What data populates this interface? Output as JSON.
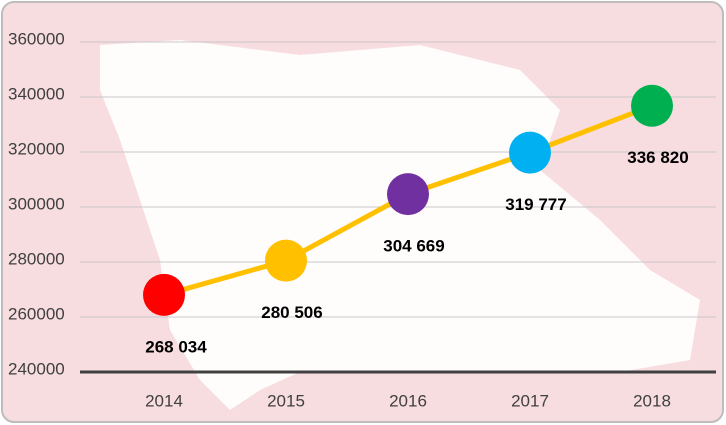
{
  "chart_data": {
    "type": "line",
    "categories": [
      "2014",
      "2015",
      "2016",
      "2017",
      "2018"
    ],
    "values": [
      268034,
      280506,
      304669,
      319777,
      336820
    ],
    "value_labels": [
      "268 034",
      "280 506",
      "304 669",
      "319 777",
      "336 820"
    ],
    "colors": [
      "#ff0000",
      "#ffc000",
      "#7030a0",
      "#00b0f0",
      "#00b050"
    ],
    "line_color": "#ffc000",
    "ylim": [
      240000,
      360000
    ],
    "yticks": [
      240000,
      260000,
      280000,
      300000,
      320000,
      340000,
      360000
    ],
    "grid": true
  }
}
